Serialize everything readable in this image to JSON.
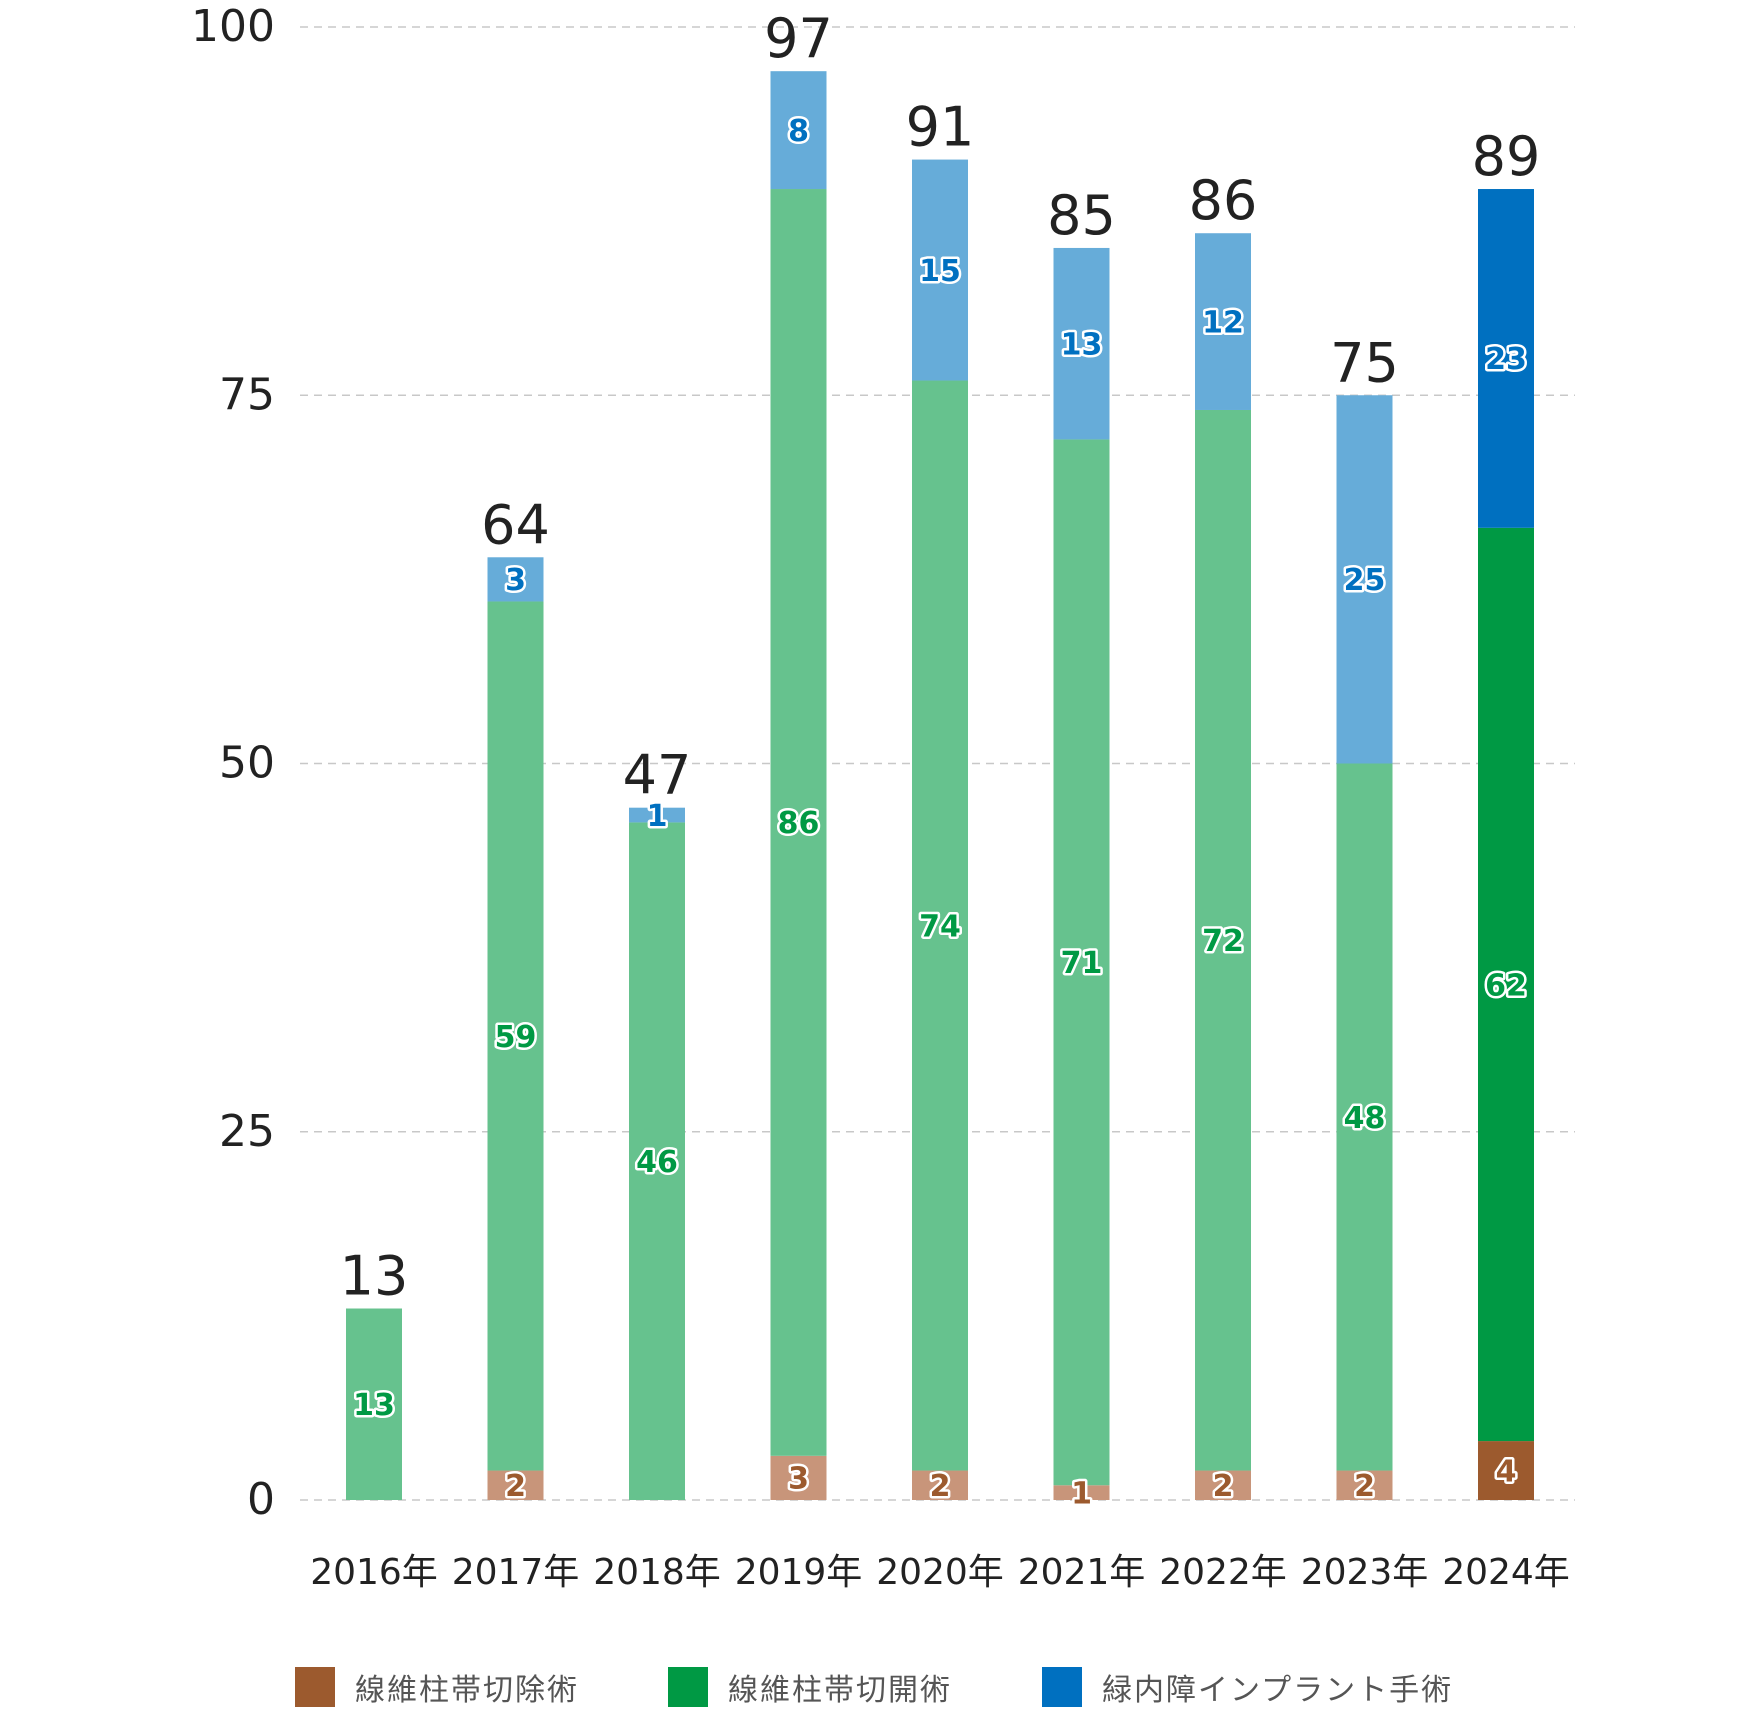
{
  "chart_data": {
    "type": "bar",
    "stacked": true,
    "categories": [
      "2016年",
      "2017年",
      "2018年",
      "2019年",
      "2020年",
      "2021年",
      "2022年",
      "2023年",
      "2024年"
    ],
    "series": [
      {
        "name": "線維柱帯切除術",
        "values": [
          0,
          2,
          0,
          3,
          2,
          1,
          2,
          2,
          4
        ]
      },
      {
        "name": "線維柱帯切開術",
        "values": [
          13,
          59,
          46,
          86,
          74,
          71,
          72,
          48,
          62
        ]
      },
      {
        "name": "緑内障インプラント手術",
        "values": [
          0,
          3,
          1,
          8,
          15,
          13,
          12,
          25,
          23
        ]
      }
    ],
    "totals": [
      13,
      64,
      47,
      97,
      91,
      85,
      86,
      75,
      89
    ],
    "y_ticks": [
      "0",
      "25",
      "50",
      "75",
      "100"
    ],
    "ylim": [
      0,
      100
    ],
    "grid": "horizontal dashed",
    "legend_position": "bottom",
    "highlighted_category": "2024年",
    "colors": {
      "base": [
        "#c8957a",
        "#66c28e",
        "#66acd9"
      ],
      "highlight": [
        "#9c5a2e",
        "#009944",
        "#0070c0"
      ],
      "label_text": [
        "#9c5a2e",
        "#009944",
        "#0070c0"
      ]
    }
  },
  "legend": {
    "items": [
      {
        "label": "線維柱帯切除術",
        "color": "#9c5a2e"
      },
      {
        "label": "線維柱帯切開術",
        "color": "#009944"
      },
      {
        "label": "緑内障インプラント手術",
        "color": "#0070c0"
      }
    ]
  }
}
